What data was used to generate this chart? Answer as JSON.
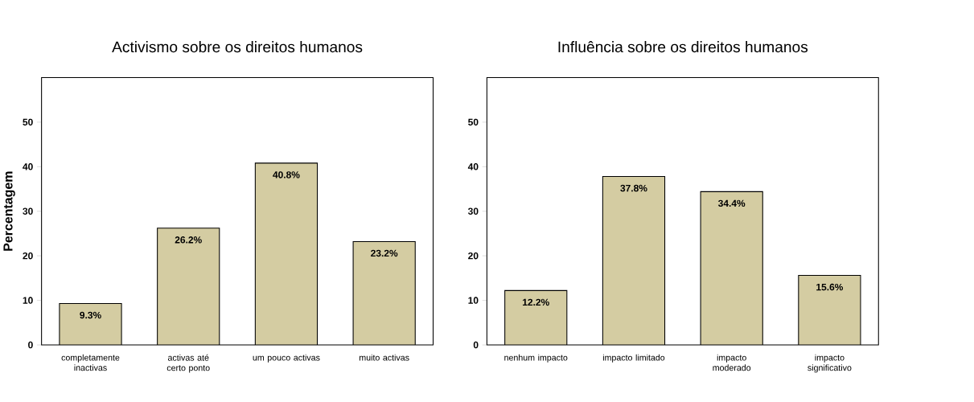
{
  "chart_data": [
    {
      "type": "bar",
      "title": "Activismo sobre os direitos humanos",
      "ylabel": "Percentagem",
      "categories": [
        "completamente inactivas",
        "activas até certo ponto",
        "um pouco activas",
        "muito activas"
      ],
      "values": [
        9.3,
        26.2,
        40.8,
        23.2
      ],
      "value_labels": [
        "9.3%",
        "26.2%",
        "40.8%",
        "23.2%"
      ],
      "color": "#d4cca2",
      "ylim": [
        0,
        60
      ],
      "yticks": [
        0,
        10,
        20,
        30,
        40,
        50
      ]
    },
    {
      "type": "bar",
      "title": "Influência sobre os direitos humanos",
      "categories": [
        "nenhum impacto",
        "impacto limitado",
        "impacto moderado",
        "impacto significativo"
      ],
      "values": [
        12.2,
        37.8,
        34.4,
        15.6
      ],
      "value_labels": [
        "12.2%",
        "37.8%",
        "34.4%",
        "15.6%"
      ],
      "color": "#d4cca2",
      "ylim": [
        0,
        60
      ],
      "yticks": [
        0,
        10,
        20,
        30,
        40,
        50
      ]
    }
  ]
}
